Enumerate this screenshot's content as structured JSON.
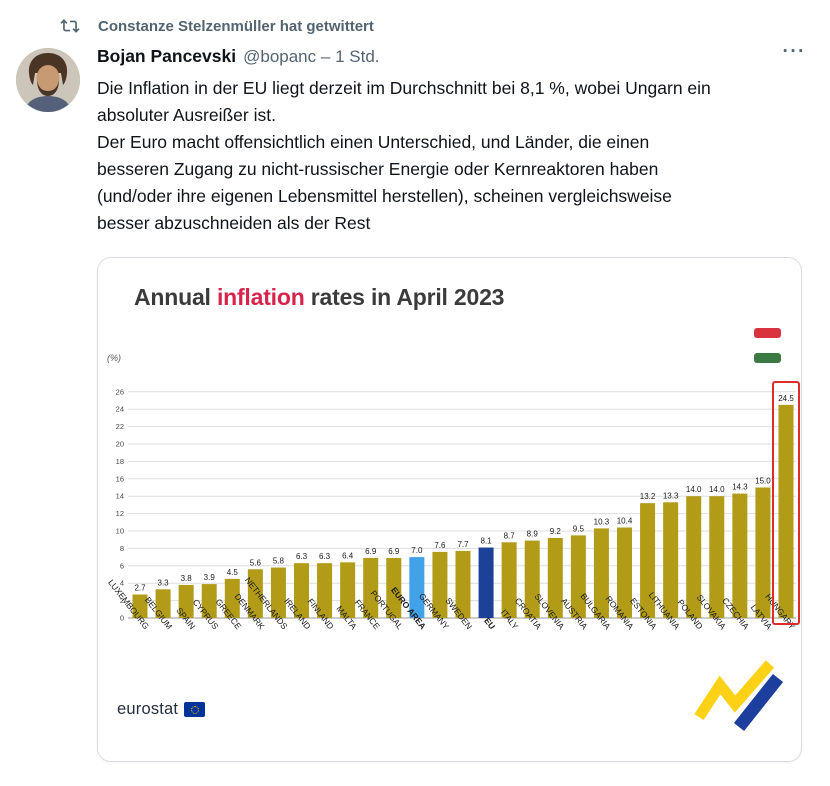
{
  "retweet_header": {
    "text": "Constanze Stelzenmüller hat getwittert"
  },
  "author": {
    "name": "Bojan Pancevski",
    "handle": "@bopanc",
    "time_separator": "–",
    "time": "1 Std."
  },
  "icons": {
    "retweet": "retweet-arrows",
    "more": "···"
  },
  "tweet": {
    "text": "Die Inflation in der EU liegt derzeit im Durchschnitt bei 8,1 %, wobei Ungarn ein absoluter Ausreißer ist.\nDer Euro macht offensichtlich einen Unterschied, und Länder, die einen besseren Zugang zu nicht-russischer Energie oder Kernreaktoren haben (und/oder ihre eigenen Lebensmittel herstellen), scheinen vergleichsweise besser abzuschneiden als der Rest"
  },
  "chart": {
    "title_prefix": "Annual ",
    "title_highlight": "inflation",
    "title_suffix": " rates in April 2023",
    "unit_label": "(%)",
    "logo_text": "eurostat",
    "colors": {
      "bar_default": "#b29b16",
      "euro_area_bar": "#41a2e8",
      "eu_bar": "#1d4099",
      "highlight_box": "#e02b2b",
      "title_highlight": "#d6244a",
      "flag_red": "#d8333f",
      "flag_green": "#3c7a44",
      "eu_emblem_blue": "#003399",
      "star_yellow": "#ffcc00",
      "deco_yellow": "#fdd116",
      "deco_blue": "#1c3f9e"
    }
  },
  "chart_data": {
    "type": "bar",
    "title": "Annual inflation rates in April 2023",
    "unit": "%",
    "categories": [
      "LUXEMBOURG",
      "BELGIUM",
      "SPAIN",
      "CYPRUS",
      "GREECE",
      "DENMARK",
      "NETHERLANDS",
      "IRELAND",
      "FINLAND",
      "MALTA",
      "FRANCE",
      "PORTUGAL",
      "EURO AREA",
      "GERMANY",
      "SWEDEN",
      "EU",
      "ITALY",
      "CROATIA",
      "SLOVENIA",
      "AUSTRIA",
      "BULGARIA",
      "ROMANIA",
      "ESTONIA",
      "LITHUANIA",
      "POLAND",
      "SLOVAKIA",
      "CZECHIA",
      "LATVIA",
      "HUNGARY"
    ],
    "values": [
      2.7,
      3.3,
      3.8,
      3.9,
      4.5,
      5.6,
      5.8,
      6.3,
      6.3,
      6.4,
      6.9,
      6.9,
      7.0,
      7.6,
      7.7,
      8.1,
      8.7,
      8.9,
      9.2,
      9.5,
      10.3,
      10.4,
      13.2,
      13.3,
      14.0,
      14.0,
      14.3,
      15.0,
      24.5
    ],
    "ylim": [
      0,
      26
    ],
    "ytick_step": 2,
    "grid": true,
    "legend": false,
    "bar_color_default": "#b29b16",
    "special_bars": {
      "EURO AREA": "#41a2e8",
      "EU": "#1d4099"
    },
    "highlight_country": "HUNGARY",
    "highlight_box_color": "#e02b2b"
  }
}
